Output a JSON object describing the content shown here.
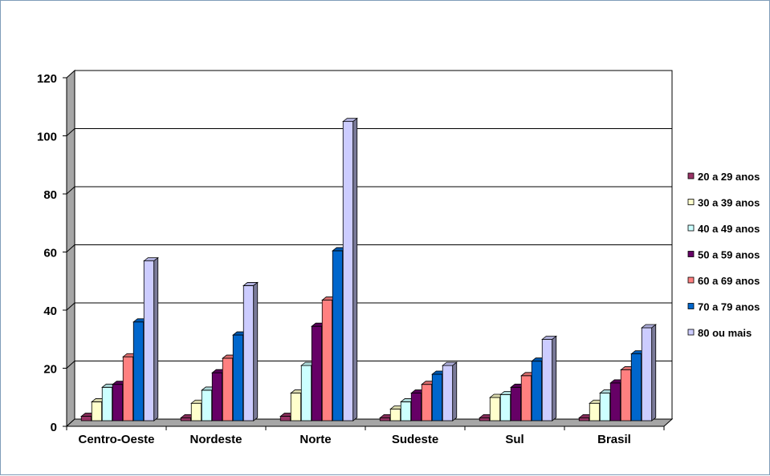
{
  "chart_data": {
    "type": "bar",
    "title": "",
    "xlabel": "",
    "ylabel": "",
    "ylim": [
      0,
      120
    ],
    "yticks": [
      0,
      20,
      40,
      60,
      80,
      100,
      120
    ],
    "grid": true,
    "legend_position": "right",
    "categories": [
      "Centro-Oeste",
      "Nordeste",
      "Norte",
      "Sudeste",
      "Sul",
      "Brasil"
    ],
    "series": [
      {
        "name": "20 a 29 anos",
        "color": "#993366",
        "values": [
          1.5,
          1.0,
          1.5,
          1.0,
          1.0,
          1.0
        ]
      },
      {
        "name": "30 a 39 anos",
        "color": "#ffffcc",
        "values": [
          6.5,
          6.0,
          9.5,
          4.0,
          8.0,
          6.0
        ]
      },
      {
        "name": "40 a 49 anos",
        "color": "#ccffff",
        "values": [
          11.5,
          10.5,
          19.0,
          6.5,
          9.0,
          9.5
        ]
      },
      {
        "name": "50 a 59 anos",
        "color": "#660066",
        "values": [
          12.5,
          16.5,
          32.5,
          9.5,
          11.5,
          13.0
        ]
      },
      {
        "name": "60 a 69 anos",
        "color": "#ff8080",
        "values": [
          22.0,
          21.5,
          41.5,
          12.5,
          15.5,
          17.5
        ]
      },
      {
        "name": "70 a 79 anos",
        "color": "#0066cc",
        "values": [
          34.0,
          29.5,
          58.5,
          16.0,
          20.5,
          23.0
        ]
      },
      {
        "name": "80 ou mais",
        "color": "#ccccff",
        "values": [
          55.0,
          46.5,
          103.0,
          19.0,
          28.0,
          32.0
        ]
      }
    ]
  }
}
